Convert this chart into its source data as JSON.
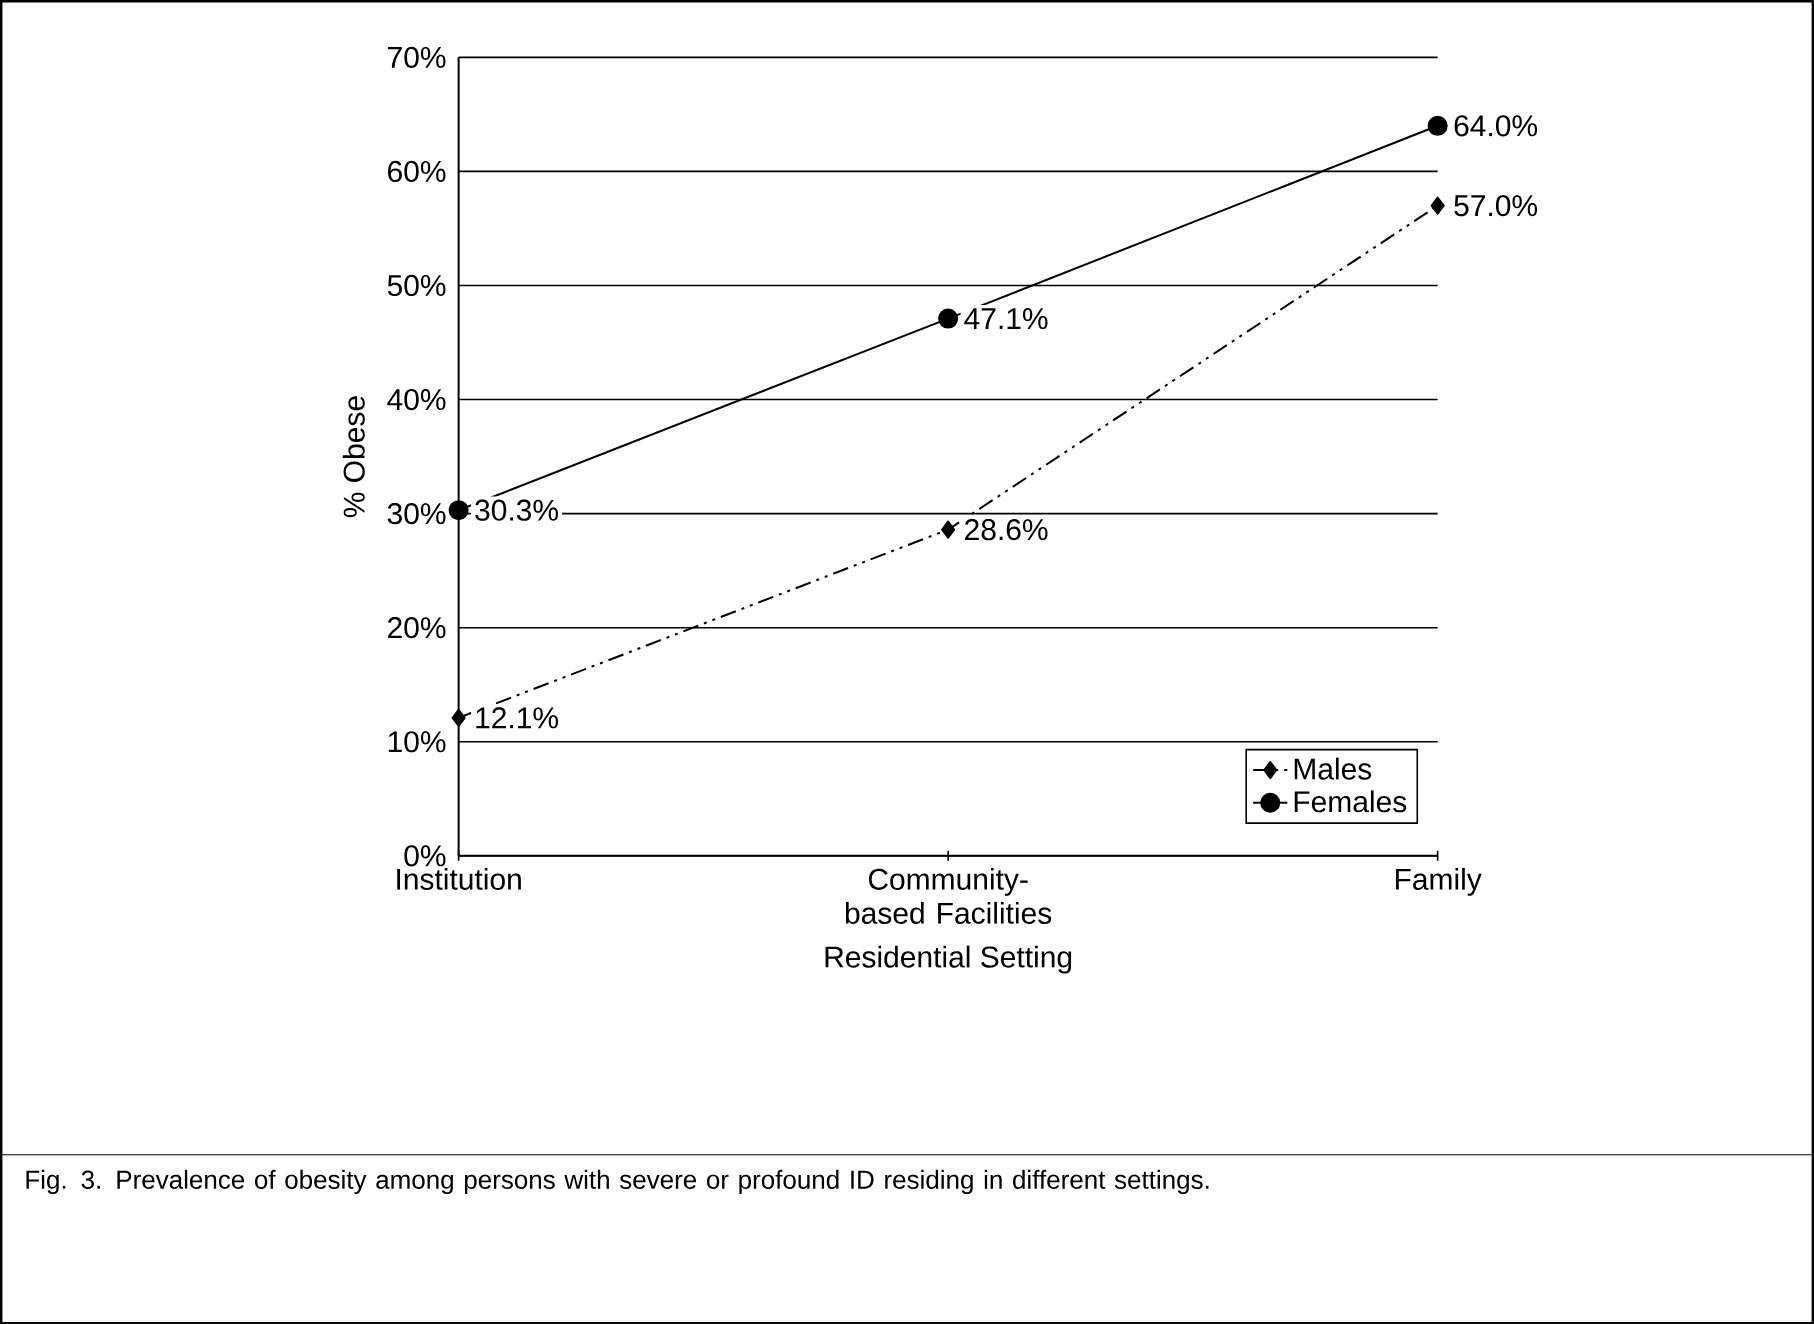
{
  "chart_data": {
    "type": "line",
    "xlabel": "Residential Setting",
    "ylabel": "% Obese",
    "categories": [
      "Institution",
      "Community-based Facilities",
      "Family"
    ],
    "series": [
      {
        "name": "Males",
        "color": "#000000",
        "values": [
          12.1,
          28.6,
          57.0
        ],
        "marker": "diamond",
        "line_style": "dashed",
        "value_labels": [
          "12.1%",
          "28.6%",
          "57.0%"
        ]
      },
      {
        "name": "Females",
        "color": "#000000",
        "values": [
          30.3,
          47.1,
          64.0
        ],
        "marker": "circle",
        "line_style": "solid",
        "value_labels": [
          "30.3%",
          "47.1%",
          "64.0%"
        ]
      }
    ],
    "ylim": [
      0,
      70
    ],
    "yticks": [
      {
        "value": 0,
        "label": "0%"
      },
      {
        "value": 10,
        "label": "10%"
      },
      {
        "value": 20,
        "label": "20%"
      },
      {
        "value": 30,
        "label": "30%"
      },
      {
        "value": 40,
        "label": "40%"
      },
      {
        "value": 50,
        "label": "50%"
      },
      {
        "value": 60,
        "label": "60%"
      },
      {
        "value": 70,
        "label": "70%"
      }
    ],
    "grid": "y",
    "legend": "bottom right",
    "annotations": [
      "Fig. 3.    Prevalence of obesity among persons with severe or profound ID residing in different settings."
    ]
  }
}
